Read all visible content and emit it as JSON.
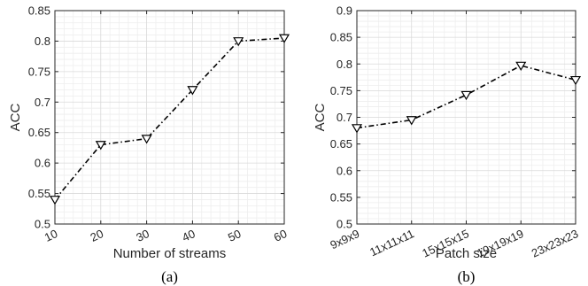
{
  "chart_data": [
    {
      "type": "line",
      "x": [
        10,
        20,
        30,
        40,
        50,
        60
      ],
      "x_tick_labels": [
        "10",
        "20",
        "30",
        "40",
        "50",
        "60"
      ],
      "y": [
        0.54,
        0.63,
        0.64,
        0.72,
        0.8,
        0.805
      ],
      "y_tick_labels": [
        "0.5",
        "0.55",
        "0.6",
        "0.65",
        "0.7",
        "0.75",
        "0.8",
        "0.85"
      ],
      "ylim": [
        0.5,
        0.85
      ],
      "xlim": [
        10,
        60
      ],
      "xlabel": "Number of streams",
      "ylabel": "ACC",
      "caption": "(a)",
      "marker": "down-triangle",
      "line_style": "dash-dot",
      "grid": "major-and-minor",
      "line_color": "#000000"
    },
    {
      "type": "line",
      "categories": [
        "9x9x9",
        "11x11x11",
        "15x15x15",
        "19x19x19",
        "23x23x23"
      ],
      "y": [
        0.68,
        0.695,
        0.742,
        0.797,
        0.77
      ],
      "y_tick_labels": [
        "0.5",
        "0.55",
        "0.6",
        "0.65",
        "0.7",
        "0.75",
        "0.8",
        "0.85",
        "0.9"
      ],
      "ylim": [
        0.5,
        0.9
      ],
      "xlabel": "Patch size",
      "ylabel": "ACC",
      "caption": "(b)",
      "marker": "down-triangle",
      "line_style": "dash-dot",
      "grid": "major-and-minor",
      "line_color": "#000000"
    }
  ]
}
